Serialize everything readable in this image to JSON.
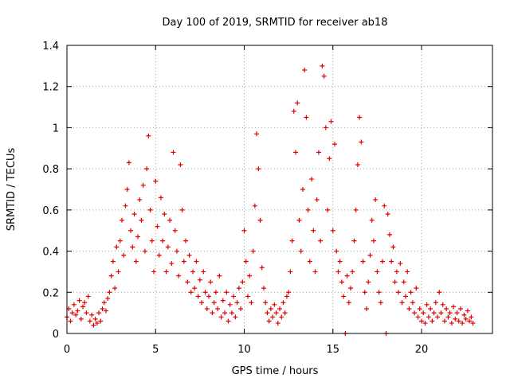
{
  "chart_data": {
    "type": "scatter",
    "title": "Day 100 of 2019, SRMTID for receiver ab18",
    "xlabel": "GPS time / hours",
    "ylabel": "SRMTID / TECUs",
    "xlim": [
      0,
      24
    ],
    "ylim": [
      0,
      1.4
    ],
    "xticks": [
      0,
      5,
      10,
      15,
      20
    ],
    "xtick_labels": [
      "0",
      "5",
      "10",
      "15",
      "20"
    ],
    "yticks": [
      0,
      0.2,
      0.4,
      0.6,
      0.8,
      1.0,
      1.2,
      1.4
    ],
    "ytick_labels": [
      "0",
      "0.2",
      "0.4",
      "0.6",
      "0.8",
      "1",
      "1.2",
      "1.4"
    ],
    "grid": true,
    "marker": "+",
    "color": "#e00000",
    "series": [
      {
        "name": "SRMTID",
        "points": [
          [
            0.0,
            0.08
          ],
          [
            0.1,
            0.12
          ],
          [
            0.2,
            0.06
          ],
          [
            0.3,
            0.1
          ],
          [
            0.4,
            0.14
          ],
          [
            0.5,
            0.09
          ],
          [
            0.6,
            0.11
          ],
          [
            0.7,
            0.16
          ],
          [
            0.8,
            0.07
          ],
          [
            0.9,
            0.13
          ],
          [
            1.0,
            0.15
          ],
          [
            1.1,
            0.1
          ],
          [
            1.2,
            0.18
          ],
          [
            1.3,
            0.06
          ],
          [
            1.4,
            0.09
          ],
          [
            1.5,
            0.04
          ],
          [
            1.6,
            0.07
          ],
          [
            1.7,
            0.05
          ],
          [
            1.8,
            0.1
          ],
          [
            1.9,
            0.06
          ],
          [
            2.0,
            0.12
          ],
          [
            2.1,
            0.15
          ],
          [
            2.2,
            0.11
          ],
          [
            2.3,
            0.17
          ],
          [
            2.4,
            0.2
          ],
          [
            2.5,
            0.28
          ],
          [
            2.6,
            0.35
          ],
          [
            2.7,
            0.22
          ],
          [
            2.8,
            0.42
          ],
          [
            2.9,
            0.3
          ],
          [
            3.0,
            0.45
          ],
          [
            3.1,
            0.55
          ],
          [
            3.2,
            0.38
          ],
          [
            3.3,
            0.62
          ],
          [
            3.4,
            0.7
          ],
          [
            3.5,
            0.83
          ],
          [
            3.6,
            0.5
          ],
          [
            3.7,
            0.42
          ],
          [
            3.8,
            0.58
          ],
          [
            3.9,
            0.35
          ],
          [
            4.0,
            0.47
          ],
          [
            4.1,
            0.65
          ],
          [
            4.2,
            0.55
          ],
          [
            4.3,
            0.72
          ],
          [
            4.4,
            0.4
          ],
          [
            4.5,
            0.8
          ],
          [
            4.6,
            0.96
          ],
          [
            4.7,
            0.6
          ],
          [
            4.8,
            0.45
          ],
          [
            4.9,
            0.3
          ],
          [
            5.0,
            0.74
          ],
          [
            5.1,
            0.52
          ],
          [
            5.2,
            0.38
          ],
          [
            5.3,
            0.66
          ],
          [
            5.4,
            0.45
          ],
          [
            5.5,
            0.58
          ],
          [
            5.6,
            0.3
          ],
          [
            5.7,
            0.42
          ],
          [
            5.8,
            0.55
          ],
          [
            5.9,
            0.34
          ],
          [
            6.0,
            0.88
          ],
          [
            6.1,
            0.5
          ],
          [
            6.2,
            0.4
          ],
          [
            6.3,
            0.28
          ],
          [
            6.4,
            0.82
          ],
          [
            6.5,
            0.6
          ],
          [
            6.6,
            0.35
          ],
          [
            6.7,
            0.45
          ],
          [
            6.8,
            0.25
          ],
          [
            6.9,
            0.38
          ],
          [
            7.0,
            0.2
          ],
          [
            7.1,
            0.3
          ],
          [
            7.2,
            0.22
          ],
          [
            7.3,
            0.35
          ],
          [
            7.4,
            0.18
          ],
          [
            7.5,
            0.26
          ],
          [
            7.6,
            0.15
          ],
          [
            7.7,
            0.3
          ],
          [
            7.8,
            0.2
          ],
          [
            7.9,
            0.12
          ],
          [
            8.0,
            0.18
          ],
          [
            8.1,
            0.25
          ],
          [
            8.2,
            0.1
          ],
          [
            8.3,
            0.15
          ],
          [
            8.4,
            0.2
          ],
          [
            8.5,
            0.12
          ],
          [
            8.6,
            0.28
          ],
          [
            8.7,
            0.08
          ],
          [
            8.8,
            0.16
          ],
          [
            8.9,
            0.1
          ],
          [
            9.0,
            0.2
          ],
          [
            9.1,
            0.06
          ],
          [
            9.2,
            0.14
          ],
          [
            9.3,
            0.1
          ],
          [
            9.4,
            0.18
          ],
          [
            9.5,
            0.08
          ],
          [
            9.6,
            0.15
          ],
          [
            9.7,
            0.22
          ],
          [
            9.8,
            0.12
          ],
          [
            9.9,
            0.25
          ],
          [
            10.0,
            0.5
          ],
          [
            10.1,
            0.35
          ],
          [
            10.2,
            0.18
          ],
          [
            10.3,
            0.28
          ],
          [
            10.4,
            0.15
          ],
          [
            10.5,
            0.4
          ],
          [
            10.6,
            0.62
          ],
          [
            10.7,
            0.97
          ],
          [
            10.8,
            0.8
          ],
          [
            10.9,
            0.55
          ],
          [
            11.0,
            0.32
          ],
          [
            11.1,
            0.22
          ],
          [
            11.2,
            0.15
          ],
          [
            11.3,
            0.1
          ],
          [
            11.4,
            0.06
          ],
          [
            11.5,
            0.12
          ],
          [
            11.6,
            0.08
          ],
          [
            11.7,
            0.14
          ],
          [
            11.8,
            0.1
          ],
          [
            11.9,
            0.05
          ],
          [
            12.0,
            0.12
          ],
          [
            12.1,
            0.08
          ],
          [
            12.2,
            0.15
          ],
          [
            12.3,
            0.1
          ],
          [
            12.4,
            0.18
          ],
          [
            12.5,
            0.2
          ],
          [
            12.6,
            0.3
          ],
          [
            12.7,
            0.45
          ],
          [
            12.8,
            1.08
          ],
          [
            12.9,
            0.88
          ],
          [
            13.0,
            1.12
          ],
          [
            13.1,
            0.55
          ],
          [
            13.2,
            0.4
          ],
          [
            13.3,
            0.7
          ],
          [
            13.4,
            1.28
          ],
          [
            13.5,
            1.05
          ],
          [
            13.6,
            0.6
          ],
          [
            13.7,
            0.35
          ],
          [
            13.8,
            0.75
          ],
          [
            13.9,
            0.5
          ],
          [
            14.0,
            0.3
          ],
          [
            14.1,
            0.65
          ],
          [
            14.2,
            0.88
          ],
          [
            14.3,
            0.45
          ],
          [
            14.4,
            1.3
          ],
          [
            14.5,
            1.25
          ],
          [
            14.6,
            1.0
          ],
          [
            14.7,
            0.6
          ],
          [
            14.8,
            0.85
          ],
          [
            14.9,
            1.03
          ],
          [
            15.0,
            0.5
          ],
          [
            15.1,
            0.92
          ],
          [
            15.2,
            0.4
          ],
          [
            15.3,
            0.3
          ],
          [
            15.4,
            0.35
          ],
          [
            15.5,
            0.25
          ],
          [
            15.6,
            0.18
          ],
          [
            15.7,
            0.0
          ],
          [
            15.8,
            0.28
          ],
          [
            15.9,
            0.15
          ],
          [
            16.0,
            0.22
          ],
          [
            16.1,
            0.3
          ],
          [
            16.2,
            0.45
          ],
          [
            16.3,
            0.6
          ],
          [
            16.4,
            0.82
          ],
          [
            16.5,
            1.05
          ],
          [
            16.6,
            0.93
          ],
          [
            16.7,
            0.35
          ],
          [
            16.8,
            0.2
          ],
          [
            16.9,
            0.12
          ],
          [
            17.0,
            0.25
          ],
          [
            17.1,
            0.38
          ],
          [
            17.2,
            0.55
          ],
          [
            17.3,
            0.45
          ],
          [
            17.4,
            0.65
          ],
          [
            17.5,
            0.3
          ],
          [
            17.6,
            0.2
          ],
          [
            17.7,
            0.15
          ],
          [
            17.8,
            0.35
          ],
          [
            17.9,
            0.62
          ],
          [
            18.0,
            0.0
          ],
          [
            18.1,
            0.58
          ],
          [
            18.2,
            0.48
          ],
          [
            18.3,
            0.35
          ],
          [
            18.4,
            0.42
          ],
          [
            18.5,
            0.25
          ],
          [
            18.6,
            0.3
          ],
          [
            18.7,
            0.2
          ],
          [
            18.8,
            0.34
          ],
          [
            18.9,
            0.15
          ],
          [
            19.0,
            0.25
          ],
          [
            19.1,
            0.18
          ],
          [
            19.2,
            0.3
          ],
          [
            19.3,
            0.12
          ],
          [
            19.4,
            0.2
          ],
          [
            19.5,
            0.15
          ],
          [
            19.6,
            0.1
          ],
          [
            19.7,
            0.22
          ],
          [
            19.8,
            0.08
          ],
          [
            19.9,
            0.12
          ],
          [
            20.0,
            0.06
          ],
          [
            20.1,
            0.1
          ],
          [
            20.2,
            0.05
          ],
          [
            20.3,
            0.14
          ],
          [
            20.4,
            0.08
          ],
          [
            20.5,
            0.12
          ],
          [
            20.6,
            0.06
          ],
          [
            20.7,
            0.1
          ],
          [
            20.8,
            0.15
          ],
          [
            20.9,
            0.08
          ],
          [
            21.0,
            0.2
          ],
          [
            21.1,
            0.1
          ],
          [
            21.2,
            0.14
          ],
          [
            21.3,
            0.06
          ],
          [
            21.4,
            0.12
          ],
          [
            21.5,
            0.08
          ],
          [
            21.6,
            0.1
          ],
          [
            21.7,
            0.05
          ],
          [
            21.8,
            0.13
          ],
          [
            21.9,
            0.07
          ],
          [
            22.0,
            0.1
          ],
          [
            22.1,
            0.06
          ],
          [
            22.2,
            0.12
          ],
          [
            22.3,
            0.05
          ],
          [
            22.4,
            0.09
          ],
          [
            22.5,
            0.07
          ],
          [
            22.6,
            0.11
          ],
          [
            22.7,
            0.06
          ],
          [
            22.8,
            0.08
          ],
          [
            22.9,
            0.05
          ]
        ]
      }
    ]
  }
}
